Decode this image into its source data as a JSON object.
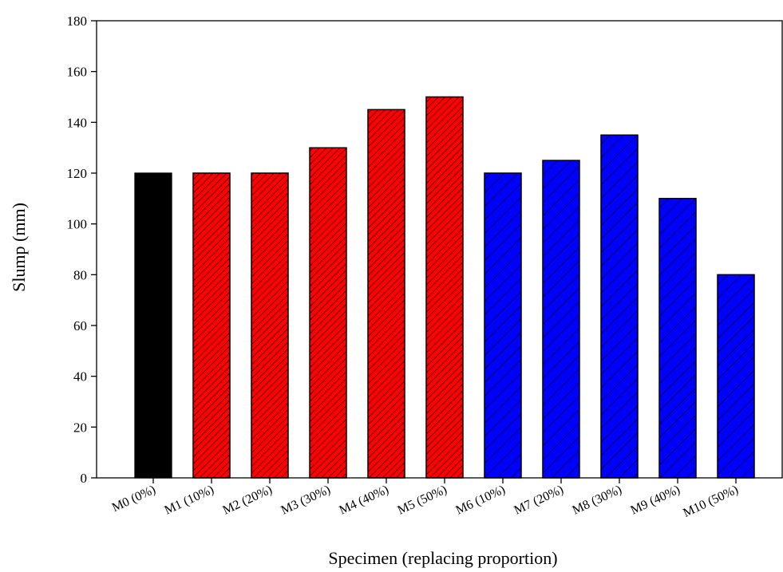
{
  "chart_data": {
    "type": "bar",
    "title": "",
    "xlabel": "Specimen (replacing proportion)",
    "ylabel": "Slump (mm)",
    "ylim": [
      0,
      180
    ],
    "yticks": [
      0,
      20,
      40,
      60,
      80,
      100,
      120,
      140,
      160,
      180
    ],
    "categories": [
      "M0 (0%)",
      "M1 (10%)",
      "M2 (20%)",
      "M3 (30%)",
      "M4 (40%)",
      "M5 (50%)",
      "M6 (10%)",
      "M7 (20%)",
      "M8 (30%)",
      "M9 (40%)",
      "M10 (50%)"
    ],
    "values": [
      120,
      120,
      120,
      130,
      145,
      150,
      120,
      125,
      135,
      110,
      80
    ],
    "bar_colors": [
      "#000000",
      "#ff0000",
      "#ff0000",
      "#ff0000",
      "#ff0000",
      "#ff0000",
      "#0000ff",
      "#0000ff",
      "#0000ff",
      "#0000ff",
      "#0000ff"
    ],
    "bar_patterns": [
      "solid",
      "dense-hatch",
      "dense-hatch",
      "dense-hatch",
      "dense-hatch",
      "dense-hatch",
      "wide-hatch",
      "wide-hatch",
      "wide-hatch",
      "wide-hatch",
      "wide-hatch"
    ],
    "grid": false,
    "legend": "none"
  }
}
